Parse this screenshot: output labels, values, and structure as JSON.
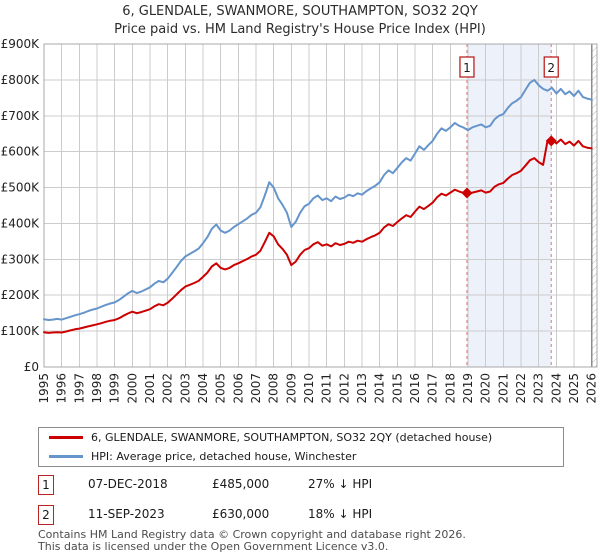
{
  "title": "6, GLENDALE, SWANMORE, SOUTHAMPTON, SO32 2QY",
  "subtitle": "Price paid vs. HM Land Registry's House Price Index (HPI)",
  "colors": {
    "property_line": "#cc0000",
    "hpi_line": "#6695cc",
    "sale_dashed_line": "#e57373",
    "badge_border": "#bb2222",
    "shade": "#edf1fa",
    "grid": "#cccccc",
    "plot_border": "#a8a8a8",
    "data_end_line": "#8c8c8c",
    "hatch_stroke": "#bbbbbb",
    "tick_text": "#222222"
  },
  "chart_data": {
    "type": "line",
    "title": "6, GLENDALE, SWANMORE, SOUTHAMPTON, SO32 2QY",
    "subtitle": "Price paid vs. HM Land Registry's House Price Index (HPI)",
    "xlabel": "",
    "ylabel": "",
    "x_axis": {
      "min": 1995.0,
      "max": 2026.3,
      "tick_years": [
        1995,
        1996,
        1997,
        1998,
        1999,
        2000,
        2001,
        2002,
        2003,
        2004,
        2005,
        2006,
        2007,
        2008,
        2009,
        2010,
        2011,
        2012,
        2013,
        2014,
        2015,
        2016,
        2017,
        2018,
        2019,
        2020,
        2021,
        2022,
        2023,
        2024,
        2025,
        2026
      ]
    },
    "y_axis": {
      "min": 0,
      "max": 900000,
      "tick_step": 100000,
      "tick_labels": [
        "£0",
        "£100K",
        "£200K",
        "£300K",
        "£400K",
        "£500K",
        "£600K",
        "£700K",
        "£800K",
        "£900K"
      ]
    },
    "grid": true,
    "legend_position": "bottom",
    "series": [
      {
        "name": "HPI: Average price, detached house, Winchester",
        "color": "#6695cc",
        "start_year": 1995.0,
        "interval_years": 0.25,
        "values_gbp_k": [
          133,
          131,
          132,
          134,
          132,
          136,
          140,
          144,
          147,
          151,
          156,
          160,
          163,
          168,
          173,
          177,
          180,
          187,
          196,
          205,
          212,
          206,
          210,
          216,
          222,
          232,
          240,
          236,
          246,
          262,
          278,
          295,
          308,
          315,
          322,
          330,
          345,
          362,
          385,
          397,
          380,
          374,
          380,
          390,
          398,
          406,
          414,
          424,
          430,
          445,
          478,
          515,
          500,
          470,
          452,
          430,
          390,
          405,
          430,
          448,
          455,
          470,
          478,
          465,
          470,
          462,
          475,
          468,
          472,
          480,
          476,
          484,
          480,
          490,
          498,
          505,
          515,
          535,
          548,
          540,
          555,
          570,
          582,
          575,
          595,
          615,
          605,
          618,
          630,
          650,
          665,
          658,
          668,
          680,
          672,
          667,
          660,
          668,
          672,
          676,
          668,
          672,
          690,
          700,
          705,
          722,
          735,
          742,
          752,
          772,
          792,
          800,
          785,
          775,
          770,
          778,
          762,
          775,
          760,
          768,
          755,
          770,
          752,
          748,
          745
        ]
      },
      {
        "name": "6, GLENDALE, SWANMORE, SOUTHAMPTON, SO32 2QY (detached house)",
        "color": "#cc0000",
        "start_year": 1995.0,
        "interval_years": 0.25,
        "values_gbp_k": [
          97,
          95,
          96,
          97,
          96,
          99,
          102,
          105,
          107,
          110,
          113,
          116,
          119,
          122,
          126,
          129,
          131,
          136,
          143,
          149,
          154,
          150,
          153,
          157,
          161,
          169,
          175,
          172,
          179,
          190,
          202,
          214,
          224,
          229,
          234,
          240,
          251,
          263,
          280,
          289,
          276,
          272,
          276,
          284,
          289,
          295,
          301,
          308,
          313,
          324,
          348,
          374,
          364,
          342,
          329,
          313,
          284,
          294,
          313,
          326,
          331,
          342,
          348,
          338,
          342,
          336,
          345,
          340,
          343,
          349,
          346,
          352,
          349,
          356,
          362,
          367,
          374,
          389,
          398,
          393,
          404,
          414,
          423,
          418,
          433,
          447,
          440,
          449,
          458,
          473,
          483,
          478,
          486,
          494,
          489,
          485,
          480,
          486,
          489,
          492,
          486,
          489,
          502,
          509,
          513,
          525,
          535,
          540,
          547,
          561,
          576,
          582,
          571,
          563,
          630,
          636,
          623,
          634,
          621,
          628,
          617,
          630,
          615,
          611,
          609
        ]
      }
    ],
    "sale_markers": [
      {
        "label": "1",
        "x_year": 2018.94,
        "value_gbp": 485000
      },
      {
        "label": "2",
        "x_year": 2023.71,
        "value_gbp": 630000
      }
    ],
    "shaded_span": {
      "from": 2018.94,
      "to": 2023.71
    },
    "hatch_span": {
      "from": 2026.0,
      "to": 2026.3
    }
  },
  "legend": [
    {
      "label": "6, GLENDALE, SWANMORE, SOUTHAMPTON, SO32 2QY (detached house)",
      "color": "#cc0000"
    },
    {
      "label": "HPI: Average price, detached house, Winchester",
      "color": "#6695cc"
    }
  ],
  "transactions": [
    {
      "num": "1",
      "date": "07-DEC-2018",
      "price": "£485,000",
      "hpi_diff": "27% ↓ HPI"
    },
    {
      "num": "2",
      "date": "11-SEP-2023",
      "price": "£630,000",
      "hpi_diff": "18% ↓ HPI"
    }
  ],
  "footer": {
    "line1": "Contains HM Land Registry data © Crown copyright and database right 2026.",
    "line2": "This data is licensed under the Open Government Licence v3.0."
  }
}
